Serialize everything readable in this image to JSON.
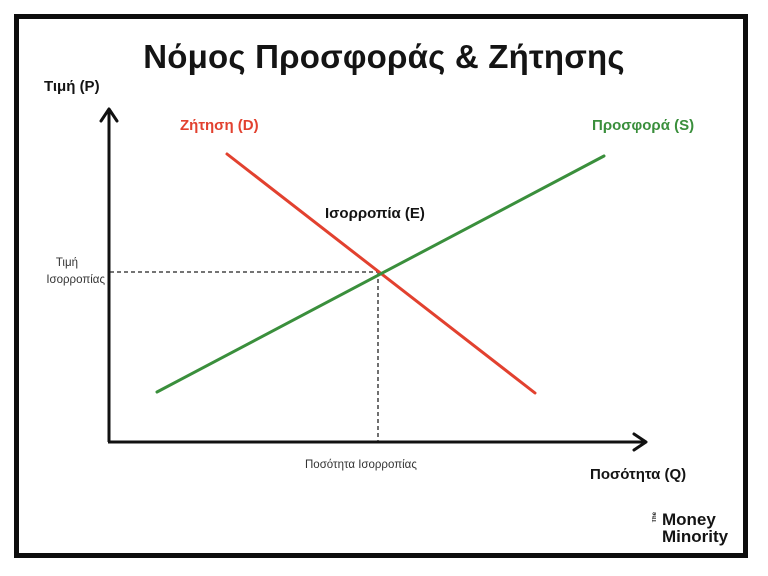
{
  "title": "Νόμος Προσφοράς & Ζήτησης",
  "axes": {
    "y_label": "Τιμή (P)",
    "x_label": "Ποσότητα (Q)"
  },
  "curves": {
    "demand": {
      "label": "Ζήτηση (D)",
      "color": "#e2412f"
    },
    "supply": {
      "label": "Προσφορά (S)",
      "color": "#3a8f3c"
    }
  },
  "equilibrium": {
    "label": "Ισορροπία (E)",
    "price_label_line1": "Τιμή",
    "price_label_line2": "Ισορροπίας",
    "quantity_label": "Ποσότητα Ισορροπίας"
  },
  "logo": {
    "small": "The",
    "line1": "Money",
    "line2": "Minority"
  },
  "colors": {
    "frame": "#0d0d0d",
    "axis": "#111111",
    "text": "#141414"
  }
}
